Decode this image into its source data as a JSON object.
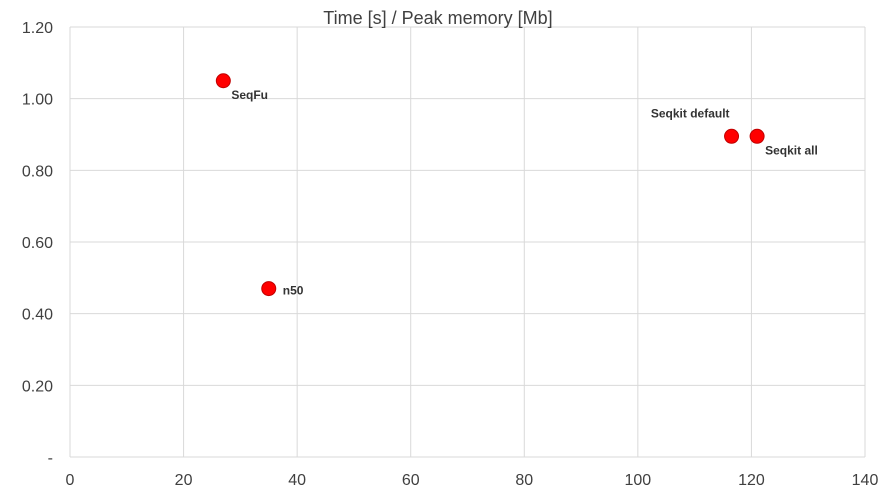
{
  "chart_data": {
    "type": "scatter",
    "title": "Time [s] / Peak memory [Mb]",
    "xlabel": "",
    "ylabel": "",
    "xlim": [
      0,
      140
    ],
    "ylim": [
      0,
      1.2
    ],
    "x_ticks": [
      {
        "value": 0,
        "label": "0"
      },
      {
        "value": 20,
        "label": "20"
      },
      {
        "value": 40,
        "label": "40"
      },
      {
        "value": 60,
        "label": "60"
      },
      {
        "value": 80,
        "label": "80"
      },
      {
        "value": 100,
        "label": "100"
      },
      {
        "value": 120,
        "label": "120"
      },
      {
        "value": 140,
        "label": "140"
      }
    ],
    "y_ticks": [
      {
        "value": 0,
        "label": "-"
      },
      {
        "value": 0.2,
        "label": "0.20"
      },
      {
        "value": 0.4,
        "label": "0.40"
      },
      {
        "value": 0.6,
        "label": "0.60"
      },
      {
        "value": 0.8,
        "label": "0.80"
      },
      {
        "value": 1.0,
        "label": "1.00"
      },
      {
        "value": 1.2,
        "label": "1.20"
      }
    ],
    "grid": true,
    "legend": "none",
    "marker_color": "#ff0000",
    "marker_edge_color": "#c00000",
    "points": [
      {
        "label": "SeqFu",
        "x": 27,
        "y": 1.05,
        "label_position": "below-right"
      },
      {
        "label": "n50",
        "x": 35,
        "y": 0.47,
        "label_position": "right"
      },
      {
        "label": "Seqkit default",
        "x": 116.5,
        "y": 0.895,
        "label_position": "above-left"
      },
      {
        "label": "Seqkit all",
        "x": 121,
        "y": 0.895,
        "label_position": "below-right"
      }
    ]
  }
}
